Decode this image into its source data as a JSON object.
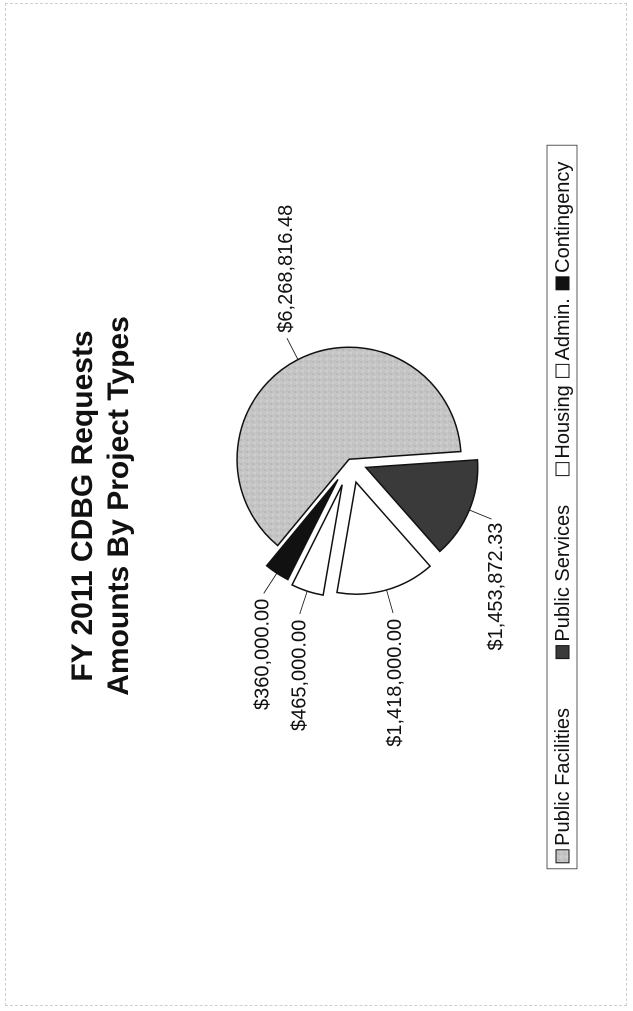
{
  "chart_data": {
    "type": "pie",
    "title": "FY 2011 CDBG Requests",
    "subtitle": "Amounts By Project Types",
    "categories": [
      "Public Facilities",
      "Public Services",
      "Housing",
      "Admin.",
      "Contingency"
    ],
    "values": [
      6268816.48,
      1453872.33,
      1418000.0,
      465000.0,
      360000.0
    ],
    "data_labels": [
      "$6,268,816.48",
      "$1,453,872.33",
      "$1,418,000.00",
      "$465,000.00",
      "$360,000.00"
    ],
    "colors": [
      "#c4c4c4",
      "#3a3a3a",
      "#ffffff",
      "#ffffff",
      "#111111"
    ],
    "exploded": true,
    "legend_position": "bottom"
  }
}
